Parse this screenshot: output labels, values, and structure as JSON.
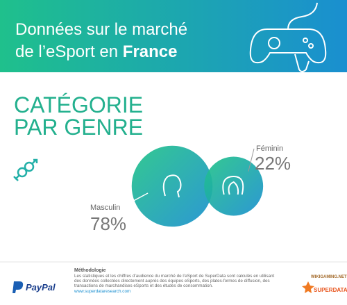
{
  "header": {
    "title_line1": "Données sur le marché",
    "title_line2": "de l’eSport en",
    "title_bold": "France"
  },
  "chart_data": {
    "type": "bubble",
    "title_line1": "CATÉGORIE",
    "title_line2": "PAR GENRE",
    "categories": [
      "Masculin",
      "Féminin"
    ],
    "values": [
      78,
      22
    ],
    "value_labels": [
      "78%",
      "22%"
    ]
  },
  "footer": {
    "heading": "Méthodologie",
    "lines": [
      "Les statistiques et les chiffres d’audience du marché de l’eSport de SuperData sont calculés en utilisant",
      "des données collectées directement auprès des équipes eSports, des plates-formes de diffusion, des",
      "transactions de marchandises eSports et des études de consommation."
    ],
    "url": "www.superdataresearch.com",
    "sponsor": "PayPal",
    "partner1": "WIKIGAMING.NET",
    "partner2": "SUPERDATA"
  }
}
